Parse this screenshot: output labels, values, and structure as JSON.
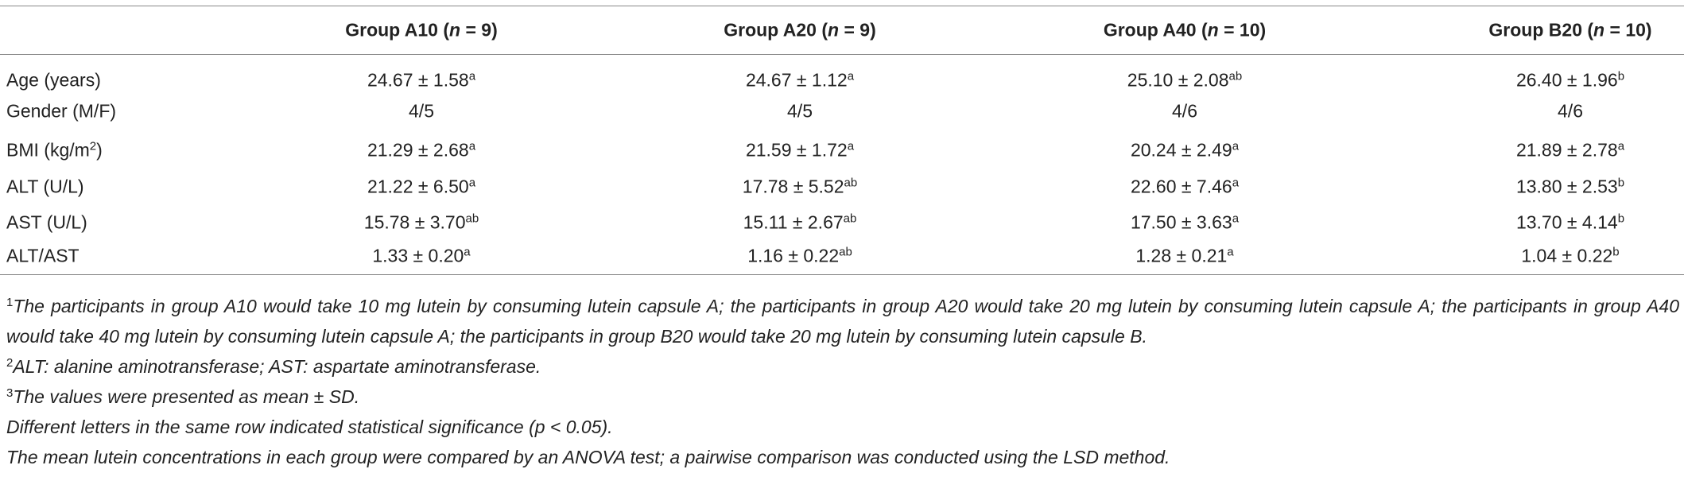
{
  "table": {
    "header": [
      {
        "prefix": "Group A10 (",
        "italic": "n",
        "suffix": " = 9)"
      },
      {
        "prefix": "Group A20 (",
        "italic": "n",
        "suffix": " = 9)"
      },
      {
        "prefix": "Group A40 (",
        "italic": "n",
        "suffix": " = 10)"
      },
      {
        "prefix": "Group B20 (",
        "italic": "n",
        "suffix": " = 10)"
      }
    ],
    "rows": [
      {
        "label": "Age (years)",
        "cells": [
          {
            "value": "24.67 ± 1.58",
            "sup": "a"
          },
          {
            "value": "24.67 ± 1.12",
            "sup": "a"
          },
          {
            "value": "25.10 ± 2.08",
            "sup": "ab"
          },
          {
            "value": "26.40 ± 1.96",
            "sup": "b"
          }
        ]
      },
      {
        "label": "Gender (M/F)",
        "cells": [
          {
            "value": "4/5"
          },
          {
            "value": "4/5"
          },
          {
            "value": "4/6"
          },
          {
            "value": "4/6"
          }
        ]
      },
      {
        "label": "BMI (kg/m",
        "label_sup": "2",
        "label_end": ")",
        "cells": [
          {
            "value": "21.29 ± 2.68",
            "sup": "a"
          },
          {
            "value": "21.59 ± 1.72",
            "sup": "a"
          },
          {
            "value": "20.24 ± 2.49",
            "sup": "a"
          },
          {
            "value": "21.89 ± 2.78",
            "sup": "a"
          }
        ]
      },
      {
        "label": "ALT (U/L)",
        "cells": [
          {
            "value": "21.22 ± 6.50",
            "sup": "a"
          },
          {
            "value": "17.78 ± 5.52",
            "sup": "ab"
          },
          {
            "value": "22.60 ± 7.46",
            "sup": "a"
          },
          {
            "value": "13.80 ± 2.53",
            "sup": "b"
          }
        ]
      },
      {
        "label": "AST (U/L)",
        "cells": [
          {
            "value": "15.78 ± 3.70",
            "sup": "ab"
          },
          {
            "value": "15.11 ± 2.67",
            "sup": "ab"
          },
          {
            "value": "17.50 ± 3.63",
            "sup": "a"
          },
          {
            "value": "13.70 ± 4.14",
            "sup": "b"
          }
        ]
      },
      {
        "label": "ALT/AST",
        "cells": [
          {
            "value": "1.33 ± 0.20",
            "sup": "a"
          },
          {
            "value": "1.16 ± 0.22",
            "sup": "ab"
          },
          {
            "value": "1.28 ± 0.21",
            "sup": "a"
          },
          {
            "value": "1.04 ± 0.22",
            "sup": "b"
          }
        ]
      }
    ],
    "footnotes": [
      {
        "mark": "1",
        "text": "The participants in group A10 would take 10 mg lutein by consuming lutein capsule A; the participants in group A20 would take 20 mg lutein by consuming lutein capsule A; the participants in group A40 would take 40 mg lutein by consuming lutein capsule A; the participants in group B20 would take 20 mg lutein by consuming lutein capsule B."
      },
      {
        "mark": "2",
        "text": "ALT: alanine aminotransferase; AST: aspartate aminotransferase."
      },
      {
        "mark": "3",
        "text": "The values were presented as mean ± SD."
      },
      {
        "text": "Different letters in the same row indicated statistical significance (p < 0.05)."
      },
      {
        "text": "The mean lutein concentrations in each group were compared by an ANOVA test; a pairwise comparison was conducted using the LSD method."
      }
    ]
  }
}
